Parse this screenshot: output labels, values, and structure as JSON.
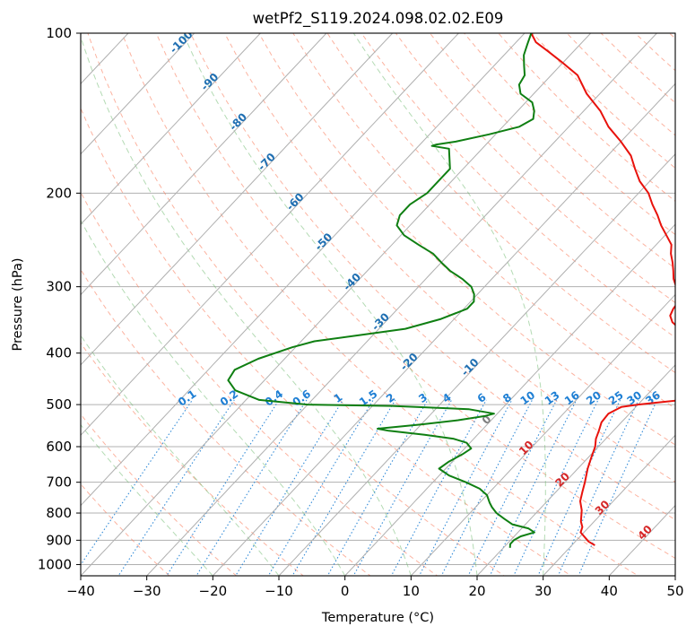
{
  "chart_data": {
    "type": "skew-t",
    "title": "wetPf2_S119.2024.098.02.02.E09",
    "xlabel": "Temperature (°C)",
    "ylabel": "Pressure (hPa)",
    "xlim": [
      -40,
      50
    ],
    "ylim": [
      1050,
      100
    ],
    "y_scale": "log",
    "grid": true,
    "x_ticks": [
      -40,
      -30,
      -20,
      -10,
      0,
      10,
      20,
      30,
      40,
      50
    ],
    "x_tick_labels": [
      "−40",
      "−30",
      "−20",
      "−10",
      "0",
      "10",
      "20",
      "30",
      "40",
      "50"
    ],
    "y_ticks": [
      100,
      200,
      300,
      400,
      500,
      600,
      700,
      800,
      900,
      1000
    ],
    "y_tick_labels": [
      "100",
      "200",
      "300",
      "400",
      "500",
      "600",
      "700",
      "800",
      "900",
      "1000"
    ],
    "series": [
      {
        "role": "temperature",
        "color": "#e8120c",
        "points": [
          [
            33.5,
            920
          ],
          [
            32,
            905
          ],
          [
            29.5,
            870
          ],
          [
            29,
            850
          ],
          [
            28,
            830
          ],
          [
            26.5,
            790
          ],
          [
            25,
            760
          ],
          [
            24,
            730
          ],
          [
            23,
            700
          ],
          [
            21.5,
            660
          ],
          [
            20.5,
            630
          ],
          [
            19.5,
            600
          ],
          [
            18.5,
            580
          ],
          [
            17.8,
            560
          ],
          [
            17,
            540
          ],
          [
            16.8,
            520
          ],
          [
            17.8,
            505
          ],
          [
            20,
            500
          ],
          [
            23,
            495
          ],
          [
            26,
            490
          ],
          [
            27,
            480
          ],
          [
            27.8,
            470
          ],
          [
            28.5,
            460
          ],
          [
            28.8,
            450
          ],
          [
            28.3,
            440
          ],
          [
            27.8,
            430
          ],
          [
            27.3,
            420
          ],
          [
            25.5,
            410
          ],
          [
            23,
            395
          ],
          [
            20,
            380
          ],
          [
            16.5,
            365
          ],
          [
            13.5,
            350
          ],
          [
            12.2,
            340
          ],
          [
            11.7,
            330
          ],
          [
            11.5,
            320
          ],
          [
            10.8,
            310
          ],
          [
            9,
            300
          ],
          [
            7.5,
            290
          ],
          [
            6.3,
            280
          ],
          [
            5,
            270
          ],
          [
            3.5,
            260
          ],
          [
            2.3,
            250
          ],
          [
            0.2,
            240
          ],
          [
            -2,
            230
          ],
          [
            -4,
            220
          ],
          [
            -6.3,
            210
          ],
          [
            -8.5,
            200
          ],
          [
            -11.5,
            190
          ],
          [
            -14,
            180
          ],
          [
            -16.5,
            170
          ],
          [
            -20,
            160
          ],
          [
            -24,
            150
          ],
          [
            -27.5,
            140
          ],
          [
            -32,
            130
          ],
          [
            -36,
            120
          ],
          [
            -40.5,
            113
          ],
          [
            -44,
            108
          ],
          [
            -47,
            104
          ],
          [
            -49,
            100
          ]
        ]
      },
      {
        "role": "dewpoint",
        "color": "#0f7f12",
        "points": [
          [
            21,
            930
          ],
          [
            20.5,
            915
          ],
          [
            20.5,
            900
          ],
          [
            21,
            885
          ],
          [
            22.5,
            870
          ],
          [
            21,
            855
          ],
          [
            18,
            840
          ],
          [
            16,
            820
          ],
          [
            14,
            800
          ],
          [
            12.5,
            780
          ],
          [
            11.5,
            765
          ],
          [
            10,
            740
          ],
          [
            8,
            720
          ],
          [
            5,
            700
          ],
          [
            1.5,
            680
          ],
          [
            -1,
            660
          ],
          [
            -0.5,
            640
          ],
          [
            0.5,
            620
          ],
          [
            1,
            605
          ],
          [
            -0.5,
            590
          ],
          [
            -3,
            580
          ],
          [
            -8,
            570
          ],
          [
            -14,
            560
          ],
          [
            -16,
            555
          ],
          [
            -10,
            545
          ],
          [
            -5,
            535
          ],
          [
            -1.5,
            525
          ],
          [
            -0.5,
            520
          ],
          [
            -5,
            510
          ],
          [
            -17,
            503
          ],
          [
            -30,
            500
          ],
          [
            -38,
            490
          ],
          [
            -43,
            470
          ],
          [
            -45.5,
            450
          ],
          [
            -46,
            430
          ],
          [
            -44,
            410
          ],
          [
            -40.5,
            390
          ],
          [
            -38,
            380
          ],
          [
            -32,
            370
          ],
          [
            -26,
            360
          ],
          [
            -22,
            345
          ],
          [
            -19.5,
            330
          ],
          [
            -19.5,
            320
          ],
          [
            -20.5,
            310
          ],
          [
            -22,
            300
          ],
          [
            -24.5,
            290
          ],
          [
            -27.5,
            280
          ],
          [
            -30,
            270
          ],
          [
            -32.5,
            260
          ],
          [
            -36,
            250
          ],
          [
            -39.5,
            240
          ],
          [
            -42,
            230
          ],
          [
            -43,
            220
          ],
          [
            -43,
            210
          ],
          [
            -42,
            200
          ],
          [
            -42,
            190
          ],
          [
            -42,
            180
          ],
          [
            -45,
            165
          ],
          [
            -48,
            163
          ],
          [
            -47.5,
            162
          ],
          [
            -45,
            160
          ],
          [
            -41,
            155
          ],
          [
            -37.5,
            150
          ],
          [
            -36.5,
            145
          ],
          [
            -37.5,
            140
          ],
          [
            -39,
            135
          ],
          [
            -42,
            130
          ],
          [
            -43.5,
            125
          ],
          [
            -44,
            120
          ],
          [
            -45.5,
            115
          ],
          [
            -47,
            110
          ],
          [
            -48,
            105
          ],
          [
            -49,
            100
          ]
        ]
      }
    ],
    "isotherm_labels": [
      {
        "text": "-100",
        "t": -100
      },
      {
        "text": "-90",
        "t": -90
      },
      {
        "text": "-80",
        "t": -80
      },
      {
        "text": "-70",
        "t": -70
      },
      {
        "text": "-60",
        "t": -60
      },
      {
        "text": "-50",
        "t": -50
      },
      {
        "text": "-40",
        "t": -40
      },
      {
        "text": "-30",
        "t": -30
      },
      {
        "text": "-20",
        "t": -20
      },
      {
        "text": "-10",
        "t": -10
      },
      {
        "text": "0",
        "t": 0
      },
      {
        "text": "10",
        "t": 10
      },
      {
        "text": "20",
        "t": 20
      },
      {
        "text": "30",
        "t": 30
      },
      {
        "text": "40",
        "t": 40
      }
    ],
    "mixing_ratio_labels": [
      {
        "text": "0.1",
        "w": 0.1
      },
      {
        "text": "0.2",
        "w": 0.2
      },
      {
        "text": "0.4",
        "w": 0.4
      },
      {
        "text": "0.6",
        "w": 0.6
      },
      {
        "text": "1",
        "w": 1
      },
      {
        "text": "1.5",
        "w": 1.5
      },
      {
        "text": "2",
        "w": 2
      },
      {
        "text": "3",
        "w": 3
      },
      {
        "text": "4",
        "w": 4
      },
      {
        "text": "6",
        "w": 6
      },
      {
        "text": "8",
        "w": 8
      },
      {
        "text": "10",
        "w": 10
      },
      {
        "text": "13",
        "w": 13
      },
      {
        "text": "16",
        "w": 16
      },
      {
        "text": "20",
        "w": 20
      },
      {
        "text": "25",
        "w": 25
      },
      {
        "text": "30",
        "w": 30
      },
      {
        "text": "36",
        "w": 36
      }
    ],
    "colors": {
      "temperature": "#e8120c",
      "dewpoint": "#0f7f12",
      "isotherm_label_cold": "#1f6fb2",
      "isotherm_label_warm": "#d62728",
      "isotherm_label_zero": "#7f7f7f",
      "mixing_ratio": "#1e7fd4",
      "dry_adiabat": "#fa8060",
      "moist_adiabat": "#6ab86a",
      "grid": "#b0b0b0"
    }
  }
}
